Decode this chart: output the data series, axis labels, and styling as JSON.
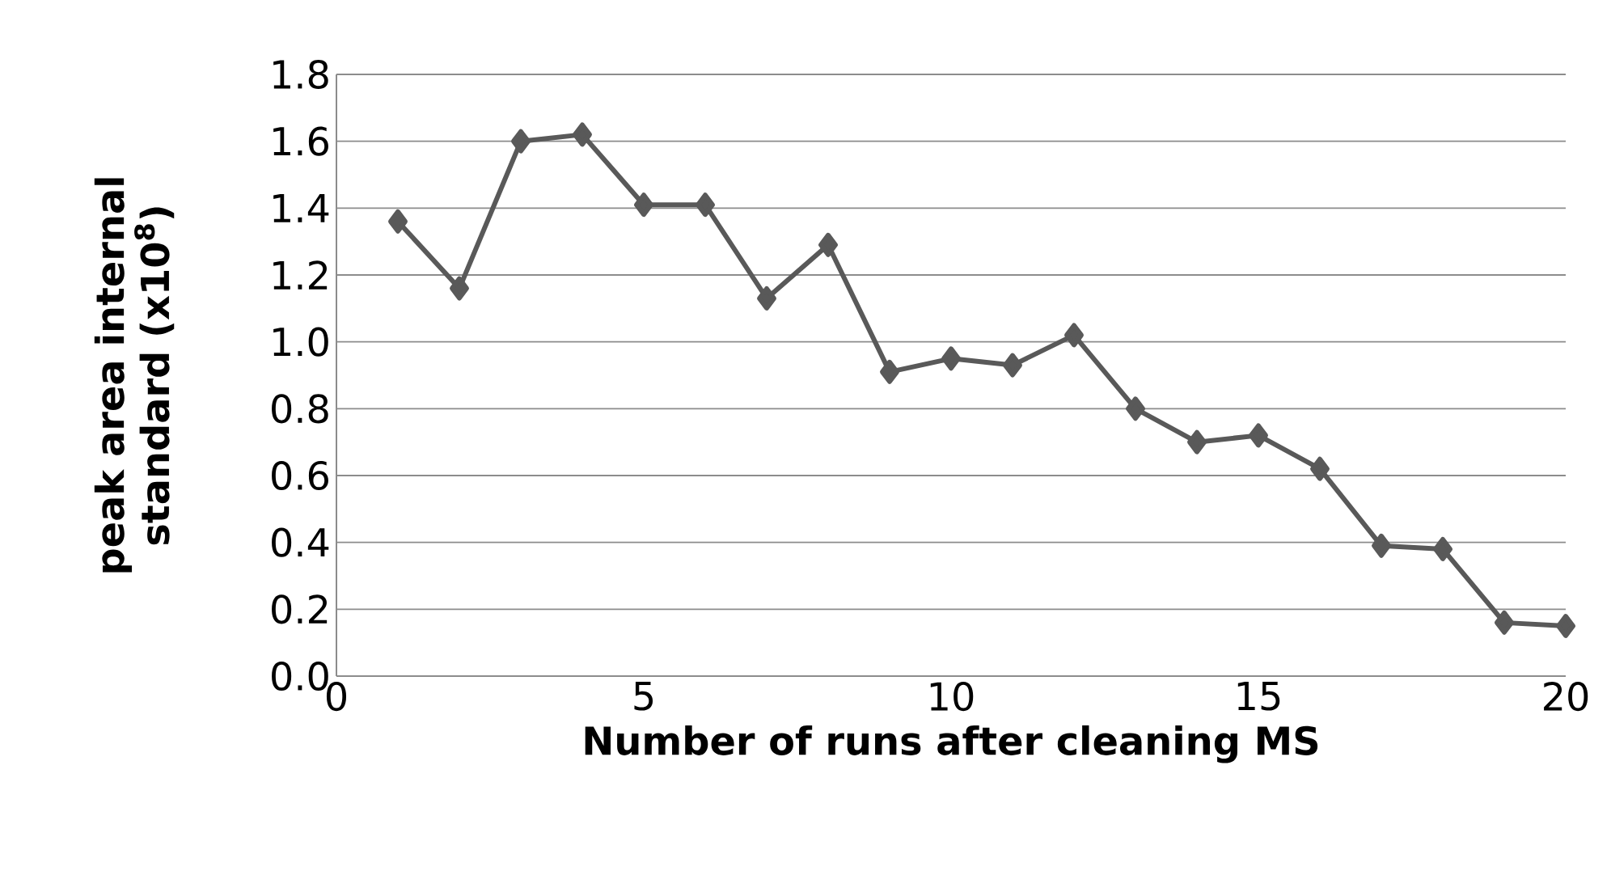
{
  "chart_data": {
    "type": "line",
    "xlabel": "Number of runs after cleaning MS",
    "ylabel": "peak area internal standard (x10$^{8}$)",
    "x": [
      1,
      2,
      3,
      4,
      5,
      6,
      7,
      8,
      9,
      10,
      11,
      12,
      13,
      14,
      15,
      16,
      17,
      18,
      19,
      20
    ],
    "series": [
      {
        "color": "#595959",
        "values": [
          1.36,
          1.16,
          1.6,
          1.62,
          1.41,
          1.41,
          1.13,
          1.29,
          0.91,
          0.95,
          0.93,
          1.02,
          0.8,
          0.7,
          0.72,
          0.62,
          0.39,
          0.38,
          0.16,
          0.15
        ]
      }
    ],
    "xlim": [
      0,
      20
    ],
    "xticks": [
      0,
      5,
      10,
      15,
      20
    ],
    "ylim": [
      0,
      1.8
    ],
    "yticks": [
      {
        "value": 0,
        "label": "0.0"
      },
      {
        "value": 0.2,
        "label": "0.2"
      },
      {
        "value": 0.4,
        "label": "0.4"
      },
      {
        "value": 0.6,
        "label": "0.6"
      },
      {
        "value": 0.8,
        "label": "0.8"
      },
      {
        "value": 1.0,
        "label": "1.0"
      },
      {
        "value": 1.2,
        "label": "1.2"
      },
      {
        "value": 1.4,
        "label": "1.4"
      },
      {
        "value": 1.6,
        "label": "1.6"
      },
      {
        "value": 1.8,
        "label": "1.8"
      }
    ],
    "grid": "y",
    "marker": "diamond",
    "line_style": "solid"
  }
}
